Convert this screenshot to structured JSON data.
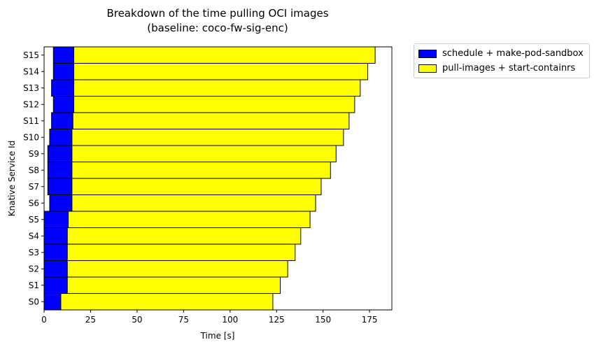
{
  "chart_data": {
    "type": "bar",
    "orientation": "horizontal",
    "stacked": true,
    "title_line1": "Breakdown of the time pulling OCI images",
    "title_line2": "(baseline: coco-fw-sig-enc)",
    "xlabel": "Time [s]",
    "ylabel": "Knative Service Id",
    "xlim": [
      0,
      187
    ],
    "xticks": [
      0,
      25,
      50,
      75,
      100,
      125,
      150,
      175
    ],
    "grid": false,
    "legend_position": "outside-right",
    "categories": [
      "S0",
      "S1",
      "S2",
      "S3",
      "S4",
      "S5",
      "S6",
      "S7",
      "S8",
      "S9",
      "S10",
      "S11",
      "S12",
      "S13",
      "S14",
      "S15"
    ],
    "series": [
      {
        "name": "schedule + make-pod-sandbox",
        "color": "#0000ff",
        "start": [
          0,
          0,
          0,
          0,
          0,
          0,
          3,
          2,
          2,
          2,
          3,
          4,
          5,
          4,
          5,
          5
        ],
        "end": [
          9,
          12.5,
          12.5,
          12.5,
          12.5,
          13,
          15,
          15,
          15,
          15,
          15,
          15.5,
          16,
          16,
          16,
          16
        ]
      },
      {
        "name": "pull-images + start-containrs",
        "color": "#ffff00",
        "start": [
          9,
          12.5,
          12.5,
          12.5,
          12.5,
          13,
          15,
          15,
          15,
          15,
          15,
          15.5,
          16,
          16,
          16,
          16
        ],
        "end": [
          123,
          127,
          131,
          135,
          138,
          143,
          146,
          149,
          154,
          157,
          161,
          164,
          167,
          170,
          174,
          178
        ]
      }
    ]
  }
}
